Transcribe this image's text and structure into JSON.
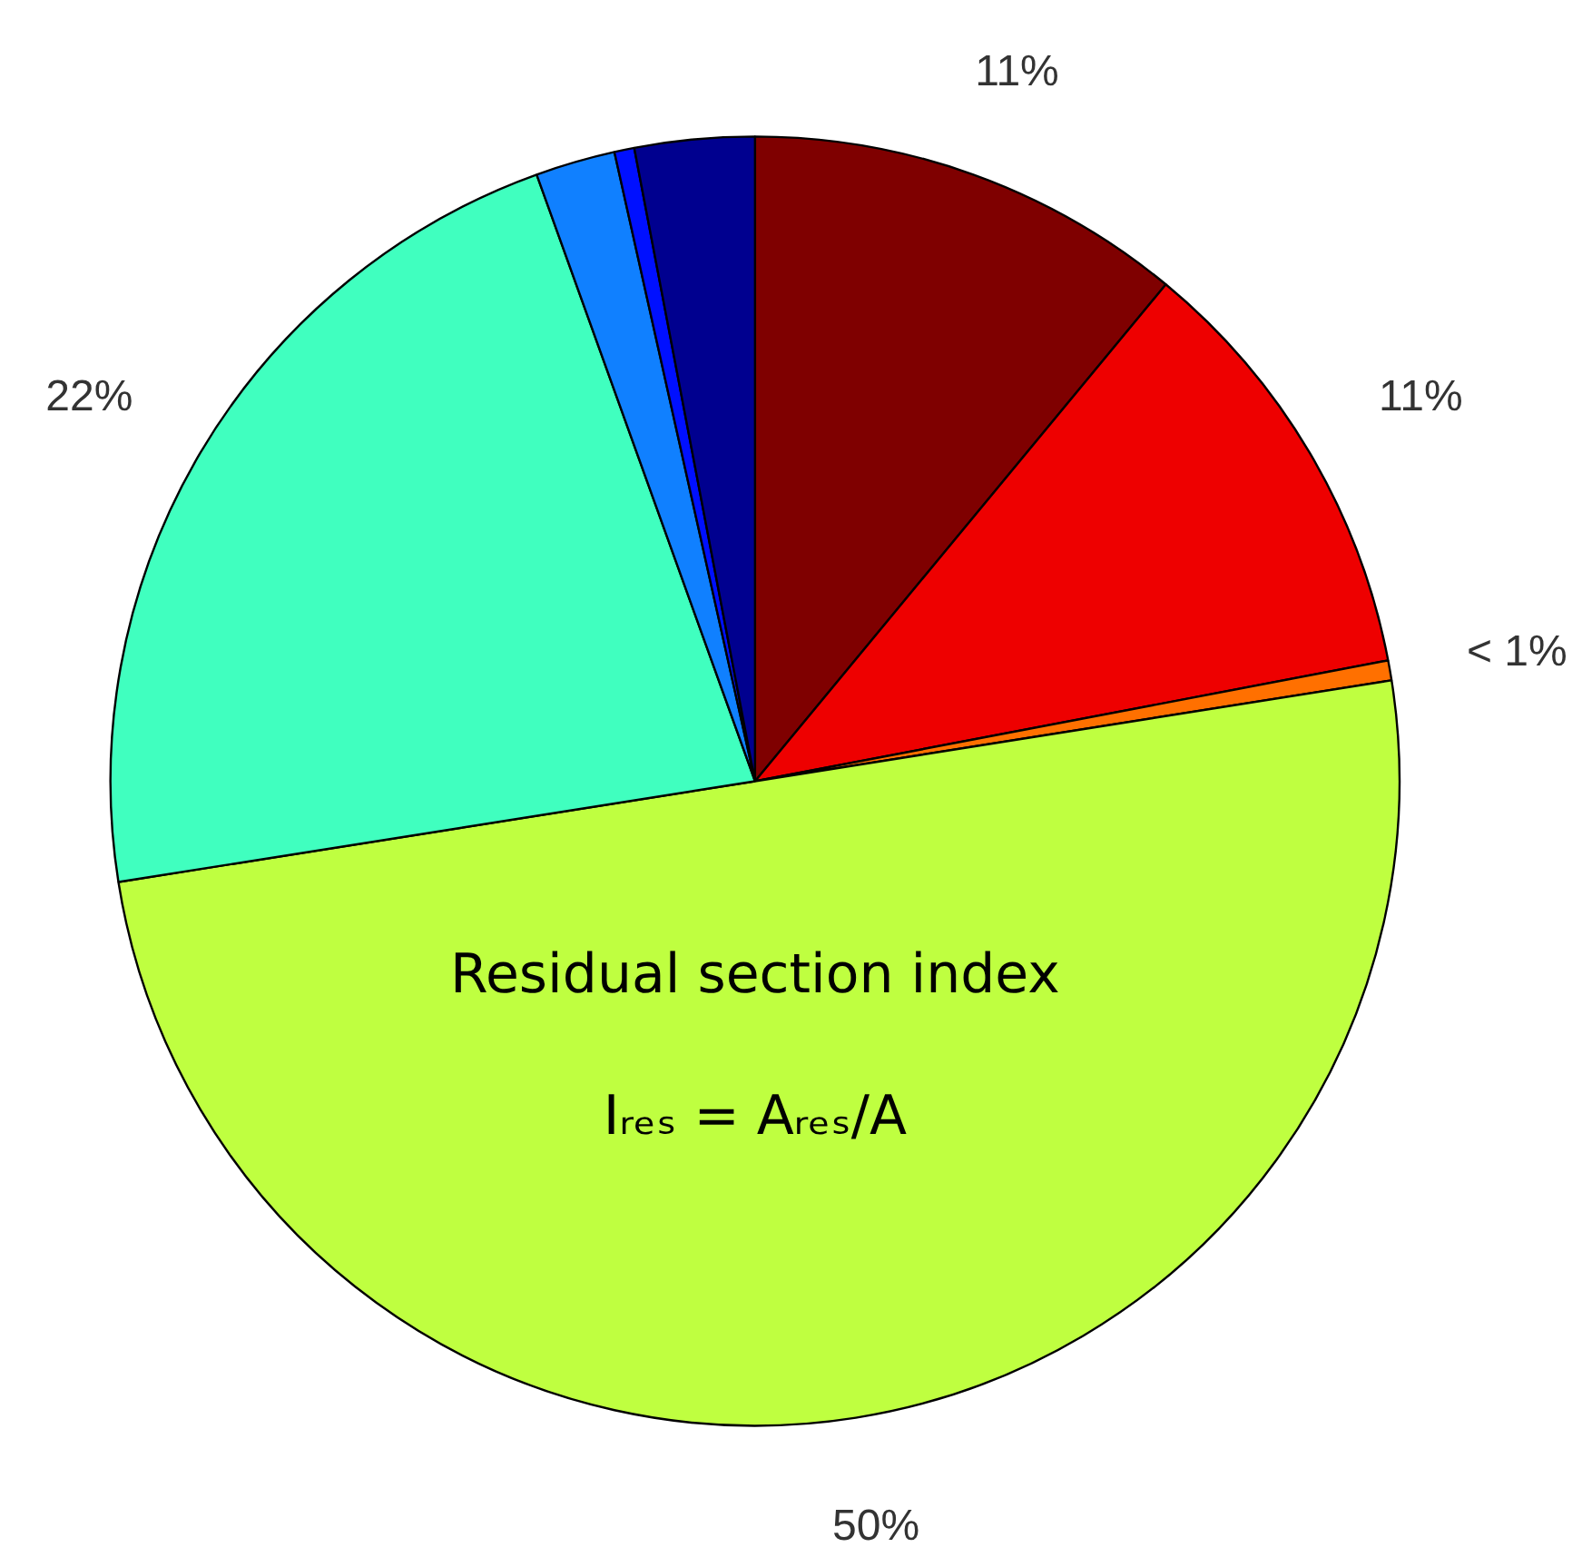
{
  "chart_data": {
    "type": "pie",
    "categories": [
      null,
      null,
      null,
      null,
      null,
      null,
      null,
      null
    ],
    "values": [
      11,
      11,
      0.5,
      50,
      22,
      2,
      0.5,
      3
    ],
    "colors": [
      "#7f0000",
      "#ee0000",
      "#ff7000",
      "#bfff40",
      "#40ffbf",
      "#1080ff",
      "#0010ff",
      "#00008f"
    ],
    "value_labels": [
      "11%",
      "11%",
      "< 1%",
      "50%",
      "22%",
      null,
      null,
      null
    ],
    "annotations": [
      "Residual section index",
      "Iᵣₑₛ = Aᵣₑₛ/A"
    ]
  }
}
